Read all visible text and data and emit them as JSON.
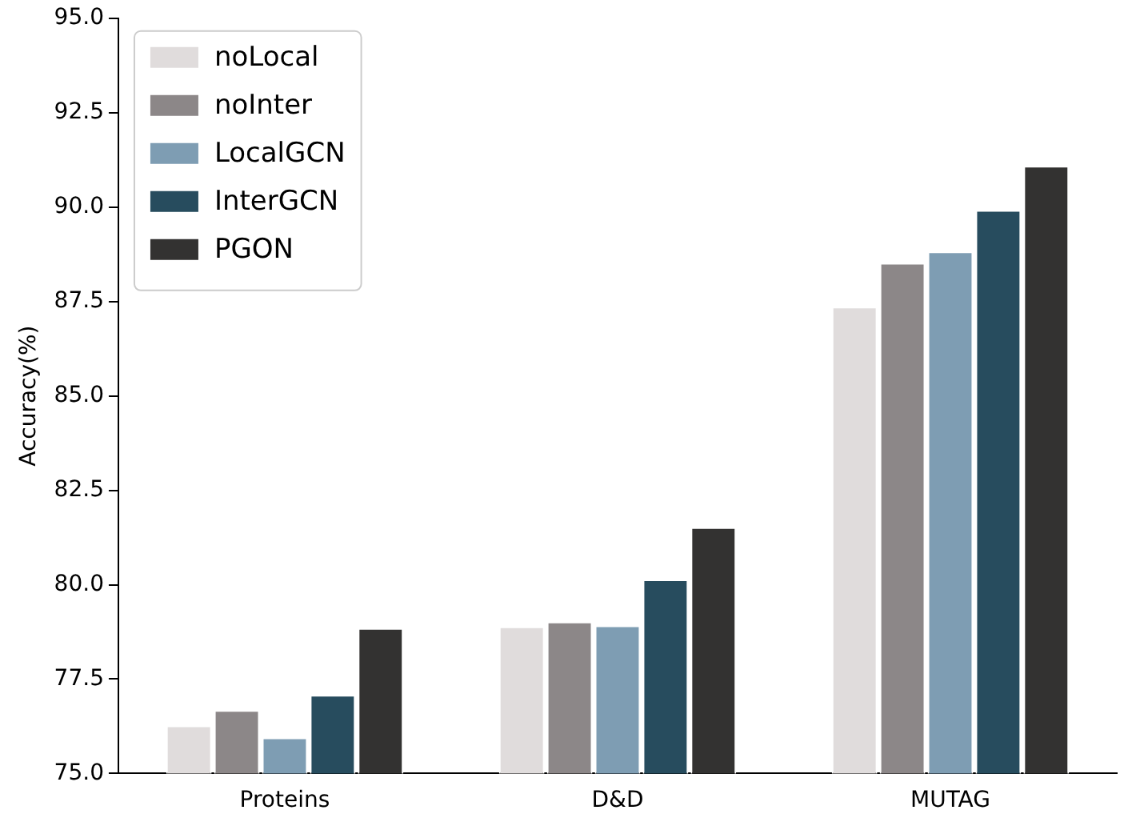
{
  "chart_data": {
    "type": "bar",
    "ylabel": "Accuracy(%)",
    "categories": [
      "Proteins",
      "D&D",
      "MUTAG"
    ],
    "series": [
      {
        "name": "noLocal",
        "color": "#e0dcdc",
        "values": [
          76.27,
          78.89,
          87.36
        ]
      },
      {
        "name": "noInter",
        "color": "#8c8788",
        "values": [
          76.68,
          79.02,
          88.52
        ]
      },
      {
        "name": "LocalGCN",
        "color": "#7e9db3",
        "values": [
          75.95,
          78.92,
          88.82
        ]
      },
      {
        "name": "InterGCN",
        "color": "#274c5e",
        "values": [
          77.08,
          80.14,
          89.92
        ]
      },
      {
        "name": "PGON",
        "color": "#333231",
        "values": [
          78.85,
          81.52,
          91.09
        ]
      }
    ],
    "ylim": [
      75,
      95
    ],
    "yticks": [
      {
        "value": 75,
        "label": "75.0"
      },
      {
        "value": 77.5,
        "label": "77.5"
      },
      {
        "value": 80,
        "label": "80.0"
      },
      {
        "value": 82.5,
        "label": "82.5"
      },
      {
        "value": 85,
        "label": "85.0"
      },
      {
        "value": 87.5,
        "label": "87.5"
      },
      {
        "value": 90,
        "label": "90.0"
      },
      {
        "value": 92.5,
        "label": "92.5"
      },
      {
        "value": 95,
        "label": "95.0"
      }
    ],
    "grid": false,
    "legend": "top left"
  }
}
